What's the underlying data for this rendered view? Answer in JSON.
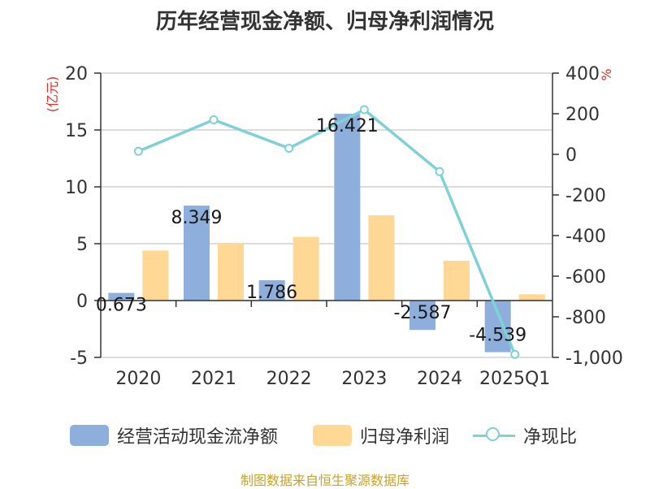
{
  "title": "历年经营现金净额、归母净利润情况",
  "source": "制图数据来自恒生聚源数据库",
  "colors": {
    "cash": "#8eafdc",
    "profit": "#ffd896",
    "ratio": "#7fd1d4",
    "axis_unit": "#e0302a",
    "source": "#c9a227"
  },
  "chart_data": {
    "type": "bar",
    "categories": [
      "2020",
      "2021",
      "2022",
      "2023",
      "2024",
      "2025Q1"
    ],
    "series": [
      {
        "name": "经营活动现金流净额",
        "type": "bar",
        "axis": "left",
        "values": [
          0.673,
          8.349,
          1.786,
          16.421,
          -2.587,
          -4.539
        ],
        "labels": [
          "0.673",
          "8.349",
          "1.786",
          "16.421",
          "-2.587",
          "-4.539"
        ]
      },
      {
        "name": "归母净利润",
        "type": "bar",
        "axis": "left",
        "values": [
          4.4,
          5.0,
          5.6,
          7.5,
          3.5,
          0.55
        ]
      },
      {
        "name": "净现比",
        "type": "line",
        "axis": "right",
        "values": [
          15,
          170,
          30,
          220,
          -85,
          -985
        ]
      }
    ],
    "y_left": {
      "unit_label": "(亿元)",
      "ylim": [
        -5,
        20
      ],
      "ticks": [
        20,
        15,
        10,
        5,
        0,
        -5
      ],
      "tick_labels": [
        "20",
        "15",
        "10",
        "5",
        "0",
        "-5"
      ]
    },
    "y_right": {
      "unit_label": "%",
      "ylim": [
        -1000,
        400
      ],
      "ticks": [
        400,
        200,
        0,
        -200,
        -400,
        -600,
        -800,
        -1000
      ],
      "tick_labels": [
        "400",
        "200",
        "0",
        "-200",
        "-400",
        "-600",
        "-800",
        "-1,000"
      ]
    },
    "grid": true,
    "legend_position": "bottom"
  }
}
